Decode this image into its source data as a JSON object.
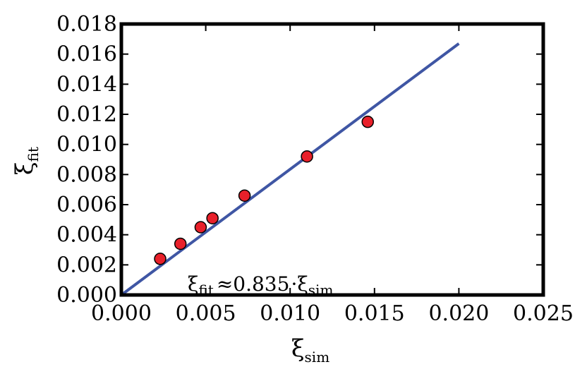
{
  "chart_data": {
    "type": "scatter",
    "xlabel": {
      "symbol": "ξ",
      "subscript": "sim"
    },
    "ylabel": {
      "symbol": "ξ",
      "subscript": "fit"
    },
    "xlim": [
      0.0,
      0.025
    ],
    "ylim": [
      0.0,
      0.018
    ],
    "x_ticks": [
      "0.000",
      "0.005",
      "0.010",
      "0.015",
      "0.020",
      "0.025"
    ],
    "y_ticks": [
      "0.000",
      "0.002",
      "0.004",
      "0.006",
      "0.008",
      "0.010",
      "0.012",
      "0.014",
      "0.016",
      "0.018"
    ],
    "grid": false,
    "colors": {
      "points": "#e8202a",
      "line": "#3f56a4",
      "axes": "#000000"
    },
    "points": [
      {
        "x": 0.0023,
        "y": 0.0024
      },
      {
        "x": 0.0035,
        "y": 0.0034
      },
      {
        "x": 0.0047,
        "y": 0.0045
      },
      {
        "x": 0.0054,
        "y": 0.0051
      },
      {
        "x": 0.0073,
        "y": 0.0066
      },
      {
        "x": 0.011,
        "y": 0.0092
      },
      {
        "x": 0.0146,
        "y": 0.0115
      }
    ],
    "fit_line": {
      "slope": 0.835,
      "x": [
        0.0,
        0.02
      ]
    },
    "annotation": {
      "lhs_symbol": "ξ",
      "lhs_sub": "fit",
      "operator": "≈",
      "coefficient": "0.835",
      "dot": "·",
      "rhs_symbol": "ξ",
      "rhs_sub": "sim"
    }
  }
}
